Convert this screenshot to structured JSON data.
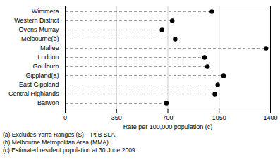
{
  "chart_data": {
    "type": "dot",
    "orientation": "horizontal",
    "categories": [
      "Barwon",
      "Central Highlands",
      "East Gippland",
      "Gippland(a)",
      "Goulburn",
      "Loddon",
      "Mallee",
      "Melbourne(b)",
      "Ovens-Murray",
      "Western District",
      "Wimmera"
    ],
    "values": [
      690,
      1020,
      1040,
      1080,
      970,
      950,
      1370,
      750,
      660,
      730,
      1000
    ],
    "xlabel": "Rate per 100,000 population (c)",
    "xlim": [
      0,
      1400
    ],
    "xticks": [
      0,
      350,
      700,
      1050,
      1400
    ],
    "grid": true,
    "color": "#000000",
    "marker": "circle",
    "line_style": "dashed",
    "annotations": [
      "(a) Excludes Yarra Ranges (S) – Pt B SLA.",
      "(b) Melbourne Metropolitan Area (MMA).",
      "(c) Estimated resident population at 30 June 2009."
    ]
  }
}
